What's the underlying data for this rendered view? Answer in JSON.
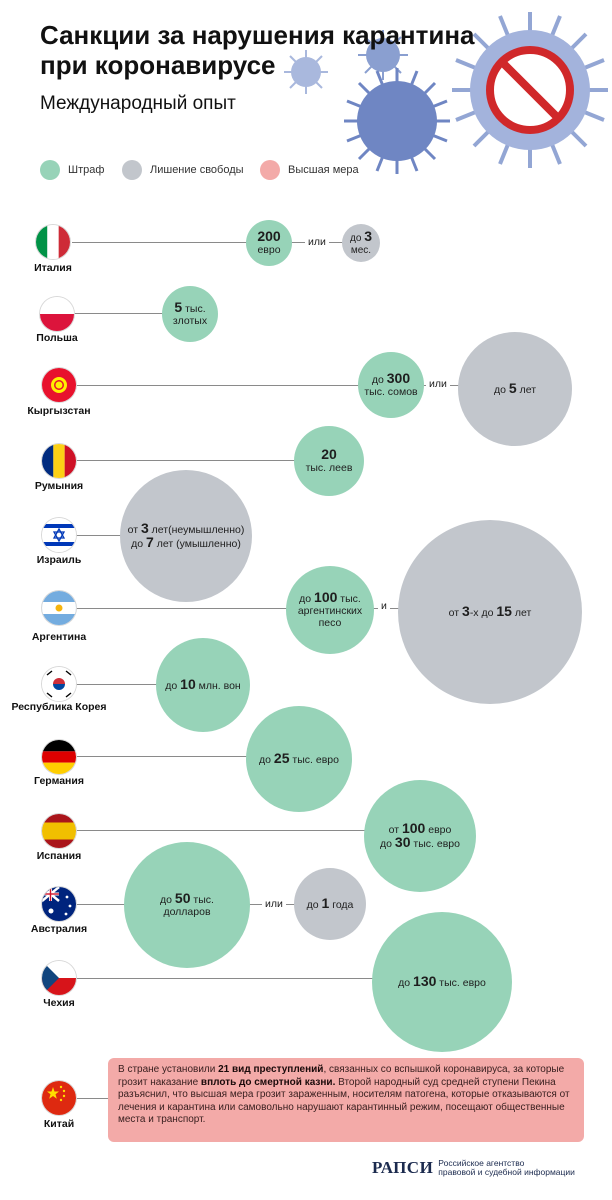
{
  "header": {
    "title_line1": "Санкции за нарушения карантина",
    "title_line2": "при коронавирусе",
    "subtitle": "Международный опыт"
  },
  "legend": [
    {
      "label": "Штраф",
      "color": "#97d3b8"
    },
    {
      "label": "Лишение свободы",
      "color": "#c2c6cc"
    },
    {
      "label": "Высшая мера",
      "color": "#f3aaa8"
    }
  ],
  "connectors": {
    "or": "или",
    "and": "и"
  },
  "countries": {
    "italy": {
      "name": "Италия",
      "fine_num": "200",
      "fine_unit": "евро",
      "prison_pre": "до ",
      "prison_num": "3",
      "prison_unit": "мес."
    },
    "poland": {
      "name": "Польша",
      "fine_num": "5",
      "fine_unit": " тыс.",
      "fine_unit2": "злотых"
    },
    "kyrgyzstan": {
      "name": "Кыргызстан",
      "fine_pre": "до ",
      "fine_num": "300",
      "fine_unit": "тыс. сомов",
      "prison_pre": "до ",
      "prison_num": "5",
      "prison_unit": " лет"
    },
    "romania": {
      "name": "Румыния",
      "fine_num": "20",
      "fine_unit": "тыс. леев"
    },
    "israel": {
      "name": "Израиль",
      "p1_pre": "от ",
      "p1_num": "3",
      "p1_unit": " лет(неумышленно)",
      "p2_pre": "до ",
      "p2_num": "7",
      "p2_unit": " лет (умышленно)"
    },
    "argentina": {
      "name": "Аргентина",
      "fine_pre": "до ",
      "fine_num": "100",
      "fine_unit": " тыс.",
      "fine_unit2": "аргентинских",
      "fine_unit3": "песо",
      "prison_pre": "от ",
      "prison_num": "3",
      "prison_mid": "-х до ",
      "prison_num2": "15",
      "prison_unit": " лет"
    },
    "korea": {
      "name": "Республика Корея",
      "fine_pre": "до ",
      "fine_num": "10",
      "fine_unit": " млн. вон"
    },
    "germany": {
      "name": "Германия",
      "fine_pre": "до ",
      "fine_num": "25",
      "fine_unit": " тыс. евро"
    },
    "spain": {
      "name": "Испания",
      "l1_pre": "от ",
      "l1_num": "100",
      "l1_unit": " евро",
      "l2_pre": "до ",
      "l2_num": "30",
      "l2_unit": " тыс. евро"
    },
    "australia": {
      "name": "Австралия",
      "fine_pre": "до ",
      "fine_num": "50",
      "fine_unit": " тыс.",
      "fine_unit2": "долларов",
      "prison_pre": "до ",
      "prison_num": "1",
      "prison_unit": " года"
    },
    "czech": {
      "name": "Чехия",
      "fine_pre": "до ",
      "fine_num": "130",
      "fine_unit": " тыс. евро"
    },
    "china": {
      "name": "Китай",
      "t1": "В стране установили ",
      "b1": "21 вид преступлений",
      "t2": ", связанных со вспышкой коронавируса, за которые грозит наказание ",
      "b2": "вплоть до смертной казни.",
      "t3": " Второй народный суд средней ступени Пекина разъяснил, что высшая мера грозит зараженным, носителям патогена, которые отказываются от лечения и карантина или самовольно нарушают карантинный режим, посещают общественные места и транспорт."
    }
  },
  "footer": {
    "logo": "РАПСИ",
    "desc1": "Российское агентство",
    "desc2": "правовой и судебной информации"
  },
  "colors": {
    "fine": "#97d3b8",
    "prison": "#c2c6cc",
    "death": "#f3aaa8",
    "virus": "#7d93c9",
    "no_sign": "#d0282a"
  }
}
